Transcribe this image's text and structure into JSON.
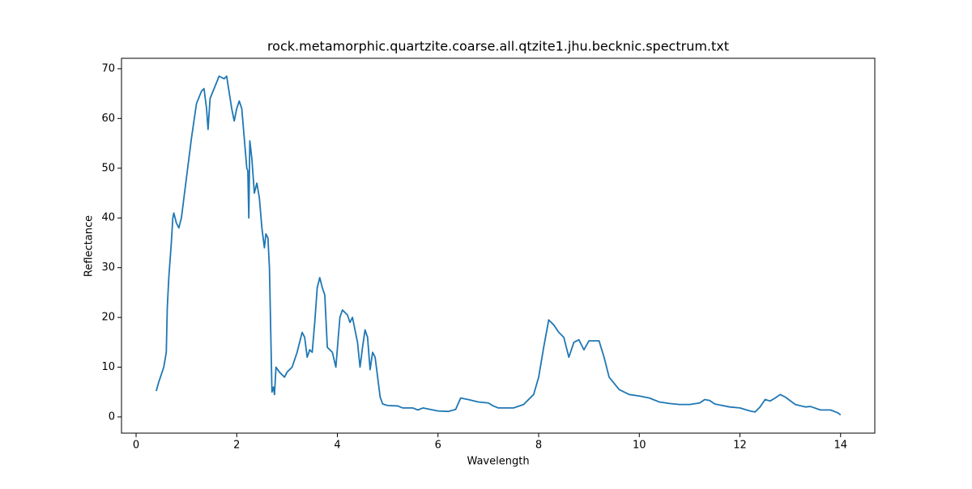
{
  "chart_data": {
    "type": "line",
    "title": "rock.metamorphic.quartzite.coarse.all.qtzite1.jhu.becknic.spectrum.txt",
    "x_label": "Wavelength",
    "y_label": "Reflectance",
    "x": [
      0.4,
      0.45,
      0.5,
      0.55,
      0.6,
      0.62,
      0.65,
      0.7,
      0.73,
      0.75,
      0.8,
      0.85,
      0.9,
      1.0,
      1.1,
      1.2,
      1.3,
      1.35,
      1.4,
      1.43,
      1.47,
      1.55,
      1.65,
      1.75,
      1.8,
      1.9,
      1.95,
      2.0,
      2.05,
      2.1,
      2.15,
      2.2,
      2.22,
      2.24,
      2.26,
      2.3,
      2.35,
      2.4,
      2.45,
      2.5,
      2.55,
      2.58,
      2.62,
      2.65,
      2.7,
      2.73,
      2.75,
      2.78,
      2.85,
      2.95,
      3.0,
      3.1,
      3.2,
      3.3,
      3.35,
      3.4,
      3.45,
      3.5,
      3.55,
      3.6,
      3.65,
      3.7,
      3.75,
      3.8,
      3.9,
      3.97,
      4.05,
      4.1,
      4.2,
      4.25,
      4.3,
      4.4,
      4.45,
      4.5,
      4.55,
      4.6,
      4.65,
      4.7,
      4.75,
      4.85,
      4.9,
      5.0,
      5.2,
      5.3,
      5.5,
      5.6,
      5.7,
      5.8,
      6.0,
      6.2,
      6.35,
      6.45,
      6.6,
      6.8,
      7.0,
      7.1,
      7.2,
      7.5,
      7.7,
      7.9,
      8.0,
      8.1,
      8.2,
      8.3,
      8.4,
      8.5,
      8.6,
      8.7,
      8.8,
      8.9,
      9.0,
      9.2,
      9.3,
      9.4,
      9.6,
      9.8,
      10.0,
      10.2,
      10.4,
      10.6,
      10.8,
      11.0,
      11.2,
      11.3,
      11.4,
      11.5,
      11.8,
      12.0,
      12.2,
      12.3,
      12.4,
      12.5,
      12.6,
      12.7,
      12.8,
      12.9,
      13.1,
      13.3,
      13.4,
      13.6,
      13.8,
      13.95,
      14.0
    ],
    "series": [
      {
        "color": "#1f77b4",
        "values": [
          5.2,
          7,
          8.5,
          10,
          13,
          22,
          28,
          35,
          40,
          41,
          39,
          38,
          40,
          48,
          56,
          63,
          65.5,
          66,
          62,
          57.8,
          64,
          66,
          68.5,
          68,
          68.5,
          62,
          59.5,
          62,
          63.5,
          62,
          56,
          50,
          49.5,
          40,
          55.5,
          52,
          45,
          47,
          44,
          38,
          34,
          36.8,
          36,
          30,
          5,
          6,
          4.5,
          10,
          9,
          8,
          9,
          10,
          13,
          17,
          16,
          12,
          13.5,
          13,
          19,
          26,
          28,
          26,
          24.5,
          14,
          13,
          10,
          20,
          21.5,
          20.5,
          19,
          20,
          15,
          10,
          14,
          17.5,
          16,
          9.5,
          13,
          12,
          4,
          2.6,
          2.3,
          2.2,
          1.8,
          1.8,
          1.4,
          1.8,
          1.6,
          1.2,
          1.1,
          1.5,
          3.8,
          3.5,
          3.0,
          2.8,
          2.2,
          1.8,
          1.8,
          2.5,
          4.5,
          8,
          14,
          19.5,
          18.5,
          17,
          16,
          12,
          15,
          15.5,
          13.5,
          15.3,
          15.3,
          12,
          8,
          5.5,
          4.5,
          4.2,
          3.8,
          3.0,
          2.7,
          2.5,
          2.5,
          2.8,
          3.5,
          3.3,
          2.6,
          2.0,
          1.8,
          1.2,
          1.0,
          2.0,
          3.5,
          3.2,
          3.8,
          4.5,
          4.0,
          2.5,
          2.0,
          2.1,
          1.4,
          1.4,
          0.8,
          0.4
        ]
      }
    ],
    "xlim": [
      -0.29,
      14.68
    ],
    "ylim": [
      -3.26,
      72.1
    ],
    "xticks": [
      0,
      2,
      4,
      6,
      8,
      10,
      12,
      14
    ],
    "yticks": [
      0,
      10,
      20,
      30,
      40,
      50,
      60,
      70
    ]
  }
}
